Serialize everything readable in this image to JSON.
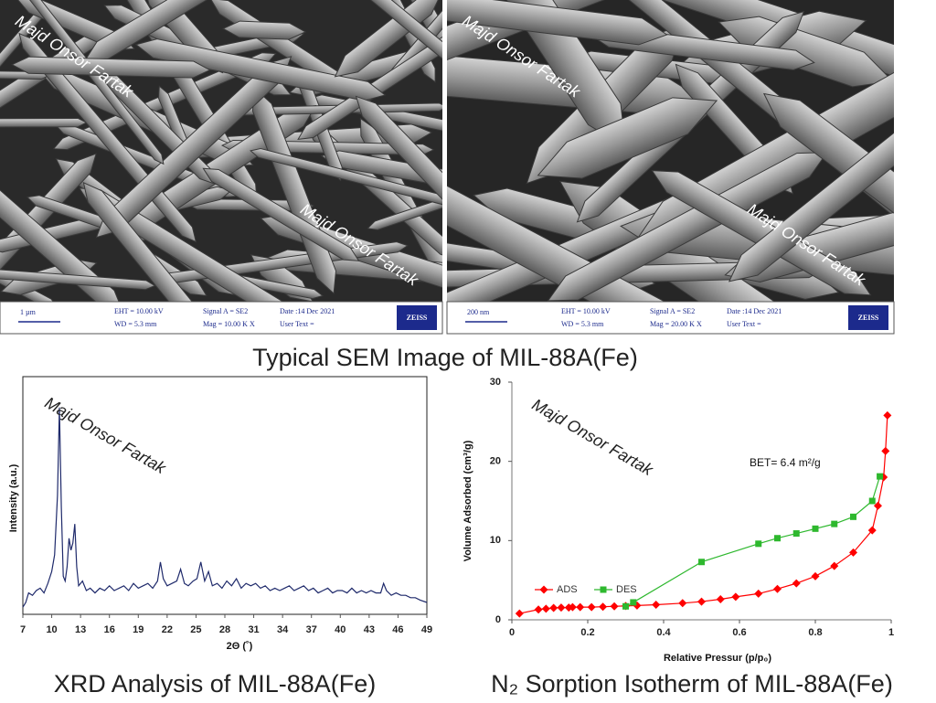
{
  "sem_title": "Typical SEM Image of MIL-88A(Fe)",
  "sem_panels": [
    {
      "scale_bar": "1 µm",
      "eht": "EHT = 10.00 kV",
      "wd": "WD = 5.3 mm",
      "signal": "Signal A = SE2",
      "mag": "Mag =  10.00 K X",
      "date": "Date :14 Dec 2021",
      "user_text": "User Text =",
      "brand": "ZEISS",
      "watermarks": [
        "Majd Onsor Fartak",
        "Majd Onsor Fartak"
      ]
    },
    {
      "scale_bar": "200 nm",
      "eht": "EHT = 10.00 kV",
      "wd": "WD = 5.3 mm",
      "signal": "Signal A = SE2",
      "mag": "Mag =  20.00 K X",
      "date": "Date :14 Dec 2021",
      "user_text": "User Text =",
      "brand": "ZEISS",
      "watermarks": [
        "Majd Onsor Fartak",
        "Majd Onsor Fartak"
      ]
    }
  ],
  "chart_data": [
    {
      "type": "line",
      "caption": "XRD Analysis of MIL-88A(Fe)",
      "watermark": "Majd Onsor Fartak",
      "xlabel": "2Θ (˚)",
      "ylabel": "Intensity (a.u.)",
      "color": "#1f2a6b",
      "frame": true,
      "xlim": [
        7,
        49
      ],
      "xticks": [
        7,
        10,
        13,
        16,
        19,
        22,
        25,
        28,
        31,
        34,
        37,
        40,
        43,
        46,
        49
      ],
      "ylim": [
        0,
        100
      ],
      "x": [
        7,
        7.3,
        7.6,
        8,
        8.4,
        8.8,
        9.2,
        9.6,
        10,
        10.3,
        10.6,
        10.8,
        11,
        11.2,
        11.4,
        11.6,
        11.8,
        12,
        12.2,
        12.4,
        12.6,
        12.8,
        13.2,
        13.6,
        14,
        14.5,
        15,
        15.5,
        16,
        16.5,
        17,
        17.5,
        18,
        18.5,
        19,
        19.5,
        20,
        20.5,
        21,
        21.3,
        21.6,
        22,
        22.5,
        23,
        23.4,
        23.8,
        24.2,
        24.7,
        25.1,
        25.5,
        25.9,
        26.3,
        26.7,
        27.2,
        27.7,
        28.2,
        28.7,
        29.2,
        29.7,
        30.2,
        30.7,
        31.2,
        31.7,
        32.2,
        32.7,
        33.2,
        33.7,
        34.2,
        34.7,
        35.2,
        35.7,
        36.2,
        36.7,
        37.2,
        37.7,
        38.2,
        38.7,
        39.2,
        39.7,
        40.2,
        40.7,
        41.2,
        41.7,
        42.2,
        42.7,
        43.2,
        43.7,
        44.2,
        44.5,
        44.8,
        45.3,
        45.8,
        46.3,
        46.8,
        47.3,
        47.8,
        48.3,
        49
      ],
      "values": [
        3,
        5,
        9,
        8,
        10,
        11,
        9,
        13,
        18,
        25,
        50,
        87,
        45,
        16,
        14,
        20,
        32,
        27,
        30,
        38,
        20,
        12,
        14,
        10,
        11,
        9,
        11,
        10,
        12,
        10,
        11,
        12,
        10,
        13,
        11,
        12,
        13,
        11,
        14,
        22,
        15,
        12,
        13,
        14,
        19,
        13,
        12,
        14,
        15,
        22,
        14,
        18,
        12,
        13,
        11,
        14,
        12,
        15,
        11,
        13,
        12,
        13,
        11,
        12,
        10,
        11,
        10,
        11,
        12,
        10,
        11,
        12,
        10,
        11,
        9,
        10,
        11,
        9,
        10,
        10,
        9,
        11,
        9,
        10,
        9,
        10,
        9,
        9,
        13,
        10,
        8,
        9,
        8,
        8,
        7,
        7,
        6,
        5
      ]
    },
    {
      "type": "line",
      "caption": "N₂ Sorption Isotherm of MIL-88A(Fe)",
      "watermark": "Majd Onsor Fartak",
      "xlabel": "Relative Pressur (p/p₀)",
      "ylabel": "Volume Adsorbed (cm³/g)",
      "annotation": "BET= 6.4 m²/g",
      "frame": false,
      "legend": "lower left",
      "xlim": [
        0,
        1
      ],
      "xticks": [
        0,
        0.2,
        0.4,
        0.6,
        0.8,
        1
      ],
      "ylim": [
        0,
        30
      ],
      "yticks": [
        0,
        10,
        20,
        30
      ],
      "series": [
        {
          "name": "ADS",
          "color": "#ff0000",
          "marker": "diamond",
          "x": [
            0.02,
            0.07,
            0.09,
            0.11,
            0.13,
            0.15,
            0.16,
            0.18,
            0.21,
            0.24,
            0.27,
            0.3,
            0.33,
            0.38,
            0.45,
            0.5,
            0.55,
            0.59,
            0.65,
            0.7,
            0.75,
            0.8,
            0.85,
            0.9,
            0.95,
            0.965,
            0.98,
            0.985,
            0.99
          ],
          "values": [
            0.8,
            1.3,
            1.4,
            1.5,
            1.55,
            1.55,
            1.6,
            1.6,
            1.6,
            1.65,
            1.7,
            1.75,
            1.8,
            1.9,
            2.1,
            2.3,
            2.6,
            2.9,
            3.3,
            3.9,
            4.6,
            5.5,
            6.8,
            8.5,
            11.3,
            14.4,
            18,
            21.3,
            25.8
          ]
        },
        {
          "name": "DES",
          "color": "#2eb82e",
          "marker": "square",
          "x": [
            0.3,
            0.32,
            0.5,
            0.65,
            0.7,
            0.75,
            0.8,
            0.85,
            0.9,
            0.95,
            0.97
          ],
          "values": [
            1.7,
            2.2,
            7.3,
            9.6,
            10.3,
            10.9,
            11.5,
            12.1,
            13.0,
            15.0,
            18.1
          ]
        }
      ]
    }
  ]
}
